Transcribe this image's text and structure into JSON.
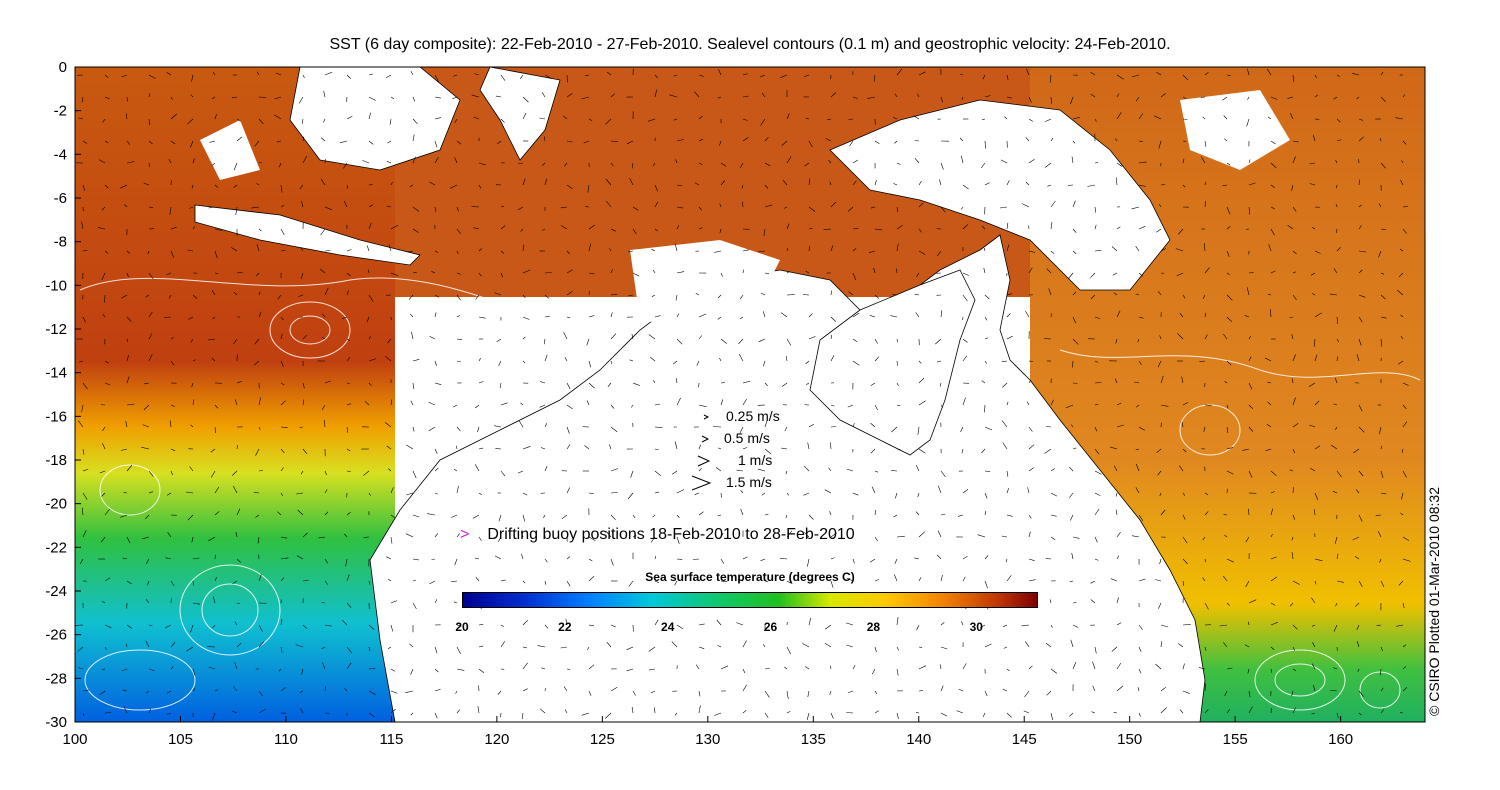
{
  "title": "SST (6 day composite): 22-Feb-2010 - 27-Feb-2010. Sealevel contours (0.1 m) and geostrophic velocity: 24-Feb-2010.",
  "x_axis": {
    "ticks": [
      "100",
      "105",
      "110",
      "115",
      "120",
      "125",
      "130",
      "135",
      "140",
      "145",
      "150",
      "155",
      "160"
    ],
    "values": [
      100,
      105,
      110,
      115,
      120,
      125,
      130,
      135,
      140,
      145,
      150,
      155,
      160
    ],
    "range": [
      100,
      164
    ]
  },
  "y_axis": {
    "ticks": [
      "0",
      "-2",
      "-4",
      "-6",
      "-8",
      "-10",
      "-12",
      "-14",
      "-16",
      "-18",
      "-20",
      "-22",
      "-24",
      "-26",
      "-28",
      "-30"
    ],
    "values": [
      0,
      -2,
      -4,
      -6,
      -8,
      -10,
      -12,
      -14,
      -16,
      -18,
      -20,
      -22,
      -24,
      -26,
      -28,
      -30
    ],
    "range": [
      -30,
      0
    ]
  },
  "velocity_legend": [
    {
      "label": "0.25 m/s",
      "speed": 0.25
    },
    {
      "label": "0.5 m/s",
      "speed": 0.5
    },
    {
      "label": "1 m/s",
      "speed": 1
    },
    {
      "label": "1.5 m/s",
      "speed": 1.5
    }
  ],
  "buoy_legend": {
    "marker": ">",
    "label": "Drifting buoy positions 18-Feb-2010 to 28-Feb-2010"
  },
  "colorbar": {
    "title": "Sea surface temperature (degrees C)",
    "ticks": [
      "20",
      "22",
      "24",
      "26",
      "28",
      "30"
    ],
    "values": [
      20,
      22,
      24,
      26,
      28,
      30
    ],
    "range": [
      20,
      31.2
    ]
  },
  "credit": "© CSIRO Plotted 01-Mar-2010 08:32",
  "colors": {
    "cold": "#00008f",
    "warm": "#800000",
    "land": "#ffffff",
    "buoy": "#d020d0"
  }
}
